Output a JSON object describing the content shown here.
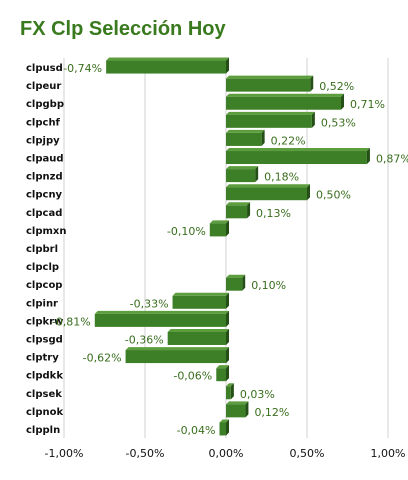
{
  "title": "FX Clp Selección Hoy",
  "colors": {
    "bar_front": "#3d7f27",
    "bar_top": "#5c9e3e",
    "bar_side": "#244f16",
    "grid": "#d0d0d0",
    "title": "#3a7a1e",
    "value_label": "#3a6e1e"
  },
  "chart_data": {
    "type": "bar",
    "orientation": "horizontal",
    "title": "FX Clp Selección Hoy",
    "categories": [
      "clpusd",
      "clpeur",
      "clpgbp",
      "clpchf",
      "clpjpy",
      "clpaud",
      "clpnzd",
      "clpcny",
      "clpcad",
      "clpmxn",
      "clpbrl",
      "clpclp",
      "clpcop",
      "clpinr",
      "clpkrw",
      "clpsgd",
      "clptry",
      "clpdkk",
      "clpsek",
      "clpnok",
      "clppln"
    ],
    "values": [
      -0.74,
      0.52,
      0.71,
      0.53,
      0.22,
      0.87,
      0.18,
      0.5,
      0.13,
      -0.1,
      0,
      0,
      0.1,
      -0.33,
      -0.81,
      -0.36,
      -0.62,
      -0.06,
      0.03,
      0.12,
      -0.04
    ],
    "value_labels": [
      "-0,74%",
      "0,52%",
      "0,71%",
      "0,53%",
      "0,22%",
      "0,87%",
      "0,18%",
      "0,50%",
      "0,13%",
      "-0,10%",
      "",
      "",
      "0,10%",
      "-0,33%",
      "-0,81%",
      "-0,36%",
      "-0,62%",
      "-0,06%",
      "0,03%",
      "0,12%",
      "-0,04%"
    ],
    "xlim": [
      -1.0,
      1.0
    ],
    "x_ticks": [
      -1.0,
      -0.5,
      0,
      0.5,
      1.0
    ],
    "x_tick_labels": [
      "-1,00%",
      "-0,50%",
      "0,00%",
      "0,50%",
      "1,00%"
    ],
    "xlabel": "",
    "ylabel": "",
    "grid": true,
    "legend": "none"
  }
}
